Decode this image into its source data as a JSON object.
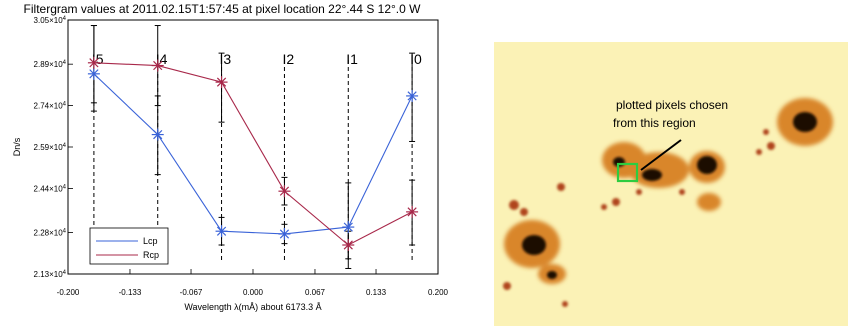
{
  "chart_data": {
    "type": "line",
    "title": "Filtergram values at 2011.02.15T1:57:45 at pixel location 22°.44 S 12°.0 W",
    "xlabel": "Wavelength λ(mÅ) about 6173.3 Å",
    "ylabel": "Dn/s",
    "xlim": [
      -0.2,
      0.2
    ],
    "ylim": [
      21300,
      30500
    ],
    "x_ticks": [
      "-0.200",
      "-0.133",
      "-0.067",
      "0.000",
      "0.067",
      "0.133",
      "0.200"
    ],
    "y_ticks": [
      {
        "value": 21300,
        "mant": "2.13×10",
        "exp": "4"
      },
      {
        "value": 22800,
        "mant": "2.28×10",
        "exp": "4"
      },
      {
        "value": 24400,
        "mant": "2.44×10",
        "exp": "4"
      },
      {
        "value": 25900,
        "mant": "2.59×10",
        "exp": "4"
      },
      {
        "value": 27400,
        "mant": "2.74×10",
        "exp": "4"
      },
      {
        "value": 28900,
        "mant": "2.89×10",
        "exp": "4"
      },
      {
        "value": 30500,
        "mant": "3.05×10",
        "exp": "4"
      }
    ],
    "filter_positions": [
      {
        "label": "I5",
        "x": -0.172
      },
      {
        "label": "I4",
        "x": -0.103
      },
      {
        "label": "I3",
        "x": -0.034
      },
      {
        "label": "I2",
        "x": 0.034
      },
      {
        "label": "I1",
        "x": 0.103
      },
      {
        "label": "I0",
        "x": 0.172
      }
    ],
    "x": [
      -0.172,
      -0.103,
      -0.034,
      0.034,
      0.103,
      0.172
    ],
    "series": [
      {
        "name": "Lcp",
        "color": "#3a63d8",
        "values": [
          28550,
          26350,
          22850,
          22750,
          23000,
          27750
        ],
        "err_lo": [
          27200,
          24900,
          22350,
          22400,
          21500,
          26100
        ],
        "err_hi": [
          30300,
          27750,
          23350,
          23100,
          24600,
          29300
        ]
      },
      {
        "name": "Rcp",
        "color": "#a8284a",
        "values": [
          28950,
          28850,
          28250,
          24300,
          22350,
          23550
        ],
        "err_lo": [
          27500,
          27400,
          26800,
          23800,
          21850,
          22350
        ],
        "err_hi": [
          30300,
          30300,
          29300,
          24800,
          22850,
          24700
        ]
      }
    ],
    "legend_position": "bottom-left",
    "grid": false
  },
  "image_panel": {
    "description_label": "plotted pixels chosen from this region",
    "line1": "plotted pixels chosen",
    "line2": "from this region",
    "box_color": "#2ecc40"
  }
}
